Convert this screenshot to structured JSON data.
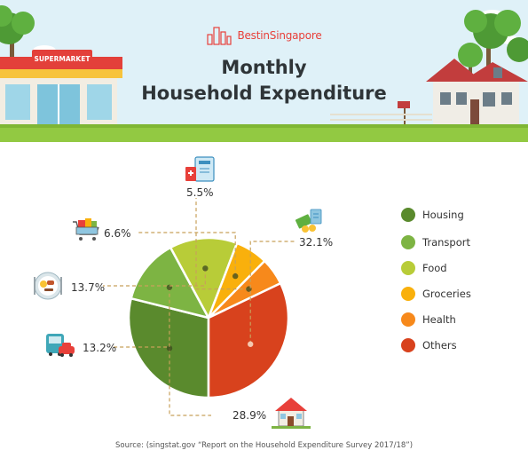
{
  "brand": {
    "name": "BestinSingapore",
    "sign": "SUPERMARKET"
  },
  "title_lines": [
    "Monthly",
    "Household Expenditure"
  ],
  "chart_data": {
    "type": "pie",
    "title": "Monthly Household Expenditure",
    "categories": [
      "Housing",
      "Transport",
      "Food",
      "Groceries",
      "Health",
      "Others"
    ],
    "values": [
      28.9,
      13.2,
      13.7,
      6.6,
      5.5,
      32.1
    ],
    "labels": [
      "28.9%",
      "13.2%",
      "13.7%",
      "6.6%",
      "5.5%",
      "32.1%"
    ],
    "colors": [
      "#5a8a2d",
      "#7db443",
      "#b8cc38",
      "#f9b00c",
      "#f7891b",
      "#d8421d"
    ],
    "legend_position": "right"
  },
  "source": "Source: (singstat.gov “Report on the Household Expenditure Survey 2017/18”)"
}
